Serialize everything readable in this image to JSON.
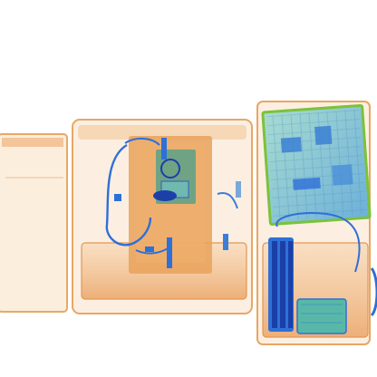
{
  "image": {
    "kind": "x-ray baggage scan",
    "palette": {
      "background": "#ffffff",
      "organic": "#e8a060",
      "organic_dense": "#d8782c",
      "metal": "#2f6fd8",
      "metal_dense": "#1a3fa6",
      "inorganic": "#58b8a8",
      "board": "#9fd6c8",
      "board_edge": "#7cc23a"
    }
  }
}
